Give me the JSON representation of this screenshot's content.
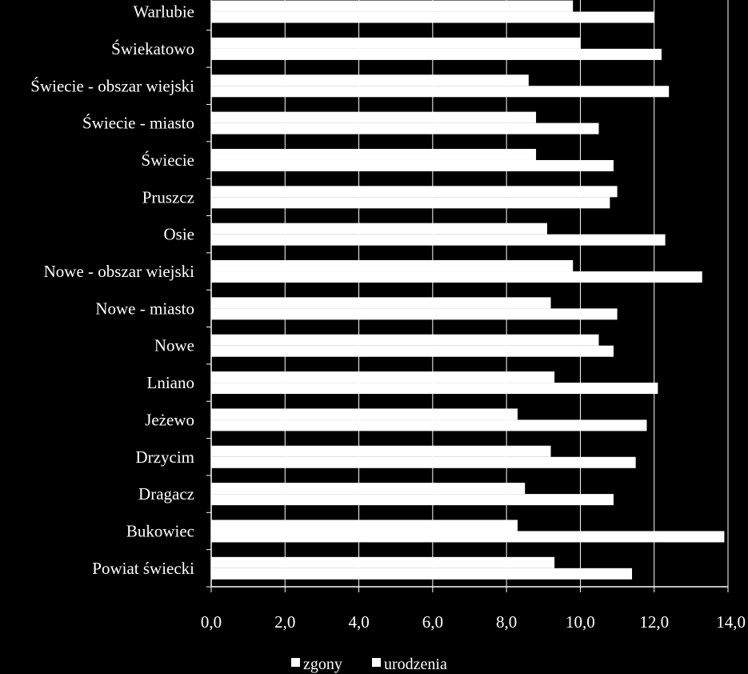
{
  "chart_data": {
    "type": "bar",
    "orientation": "horizontal",
    "categories": [
      "Powiat świecki",
      "Bukowiec",
      "Dragacz",
      "Drzycim",
      "Jeżewo",
      "Lniano",
      "Nowe",
      "Nowe - miasto",
      "Nowe - obszar wiejski",
      "Osie",
      "Pruszcz",
      "Świecie",
      "Świecie - miasto",
      "Świecie - obszar wiejski",
      "Świekatowo",
      "Warlubie"
    ],
    "series": [
      {
        "name": "zgony",
        "values": [
          9.3,
          8.3,
          8.5,
          9.2,
          8.3,
          9.3,
          10.5,
          9.2,
          9.8,
          9.1,
          11.0,
          8.8,
          8.8,
          8.6,
          10.0,
          9.8
        ]
      },
      {
        "name": "urodzenia",
        "values": [
          11.4,
          13.9,
          10.9,
          11.5,
          11.8,
          12.1,
          10.9,
          11.0,
          13.3,
          12.3,
          10.8,
          10.9,
          10.5,
          12.4,
          12.2,
          12.0
        ]
      }
    ],
    "xlim": [
      0,
      14
    ],
    "ticks": [
      "0,0",
      "2,0",
      "4,0",
      "6,0",
      "8,0",
      "10,0",
      "12,0",
      "14,0"
    ],
    "gridlines": true,
    "legend_position": "bottom",
    "colors": {
      "background": "#000000",
      "bars": "#ffffff",
      "grid": "#ffffff"
    }
  }
}
